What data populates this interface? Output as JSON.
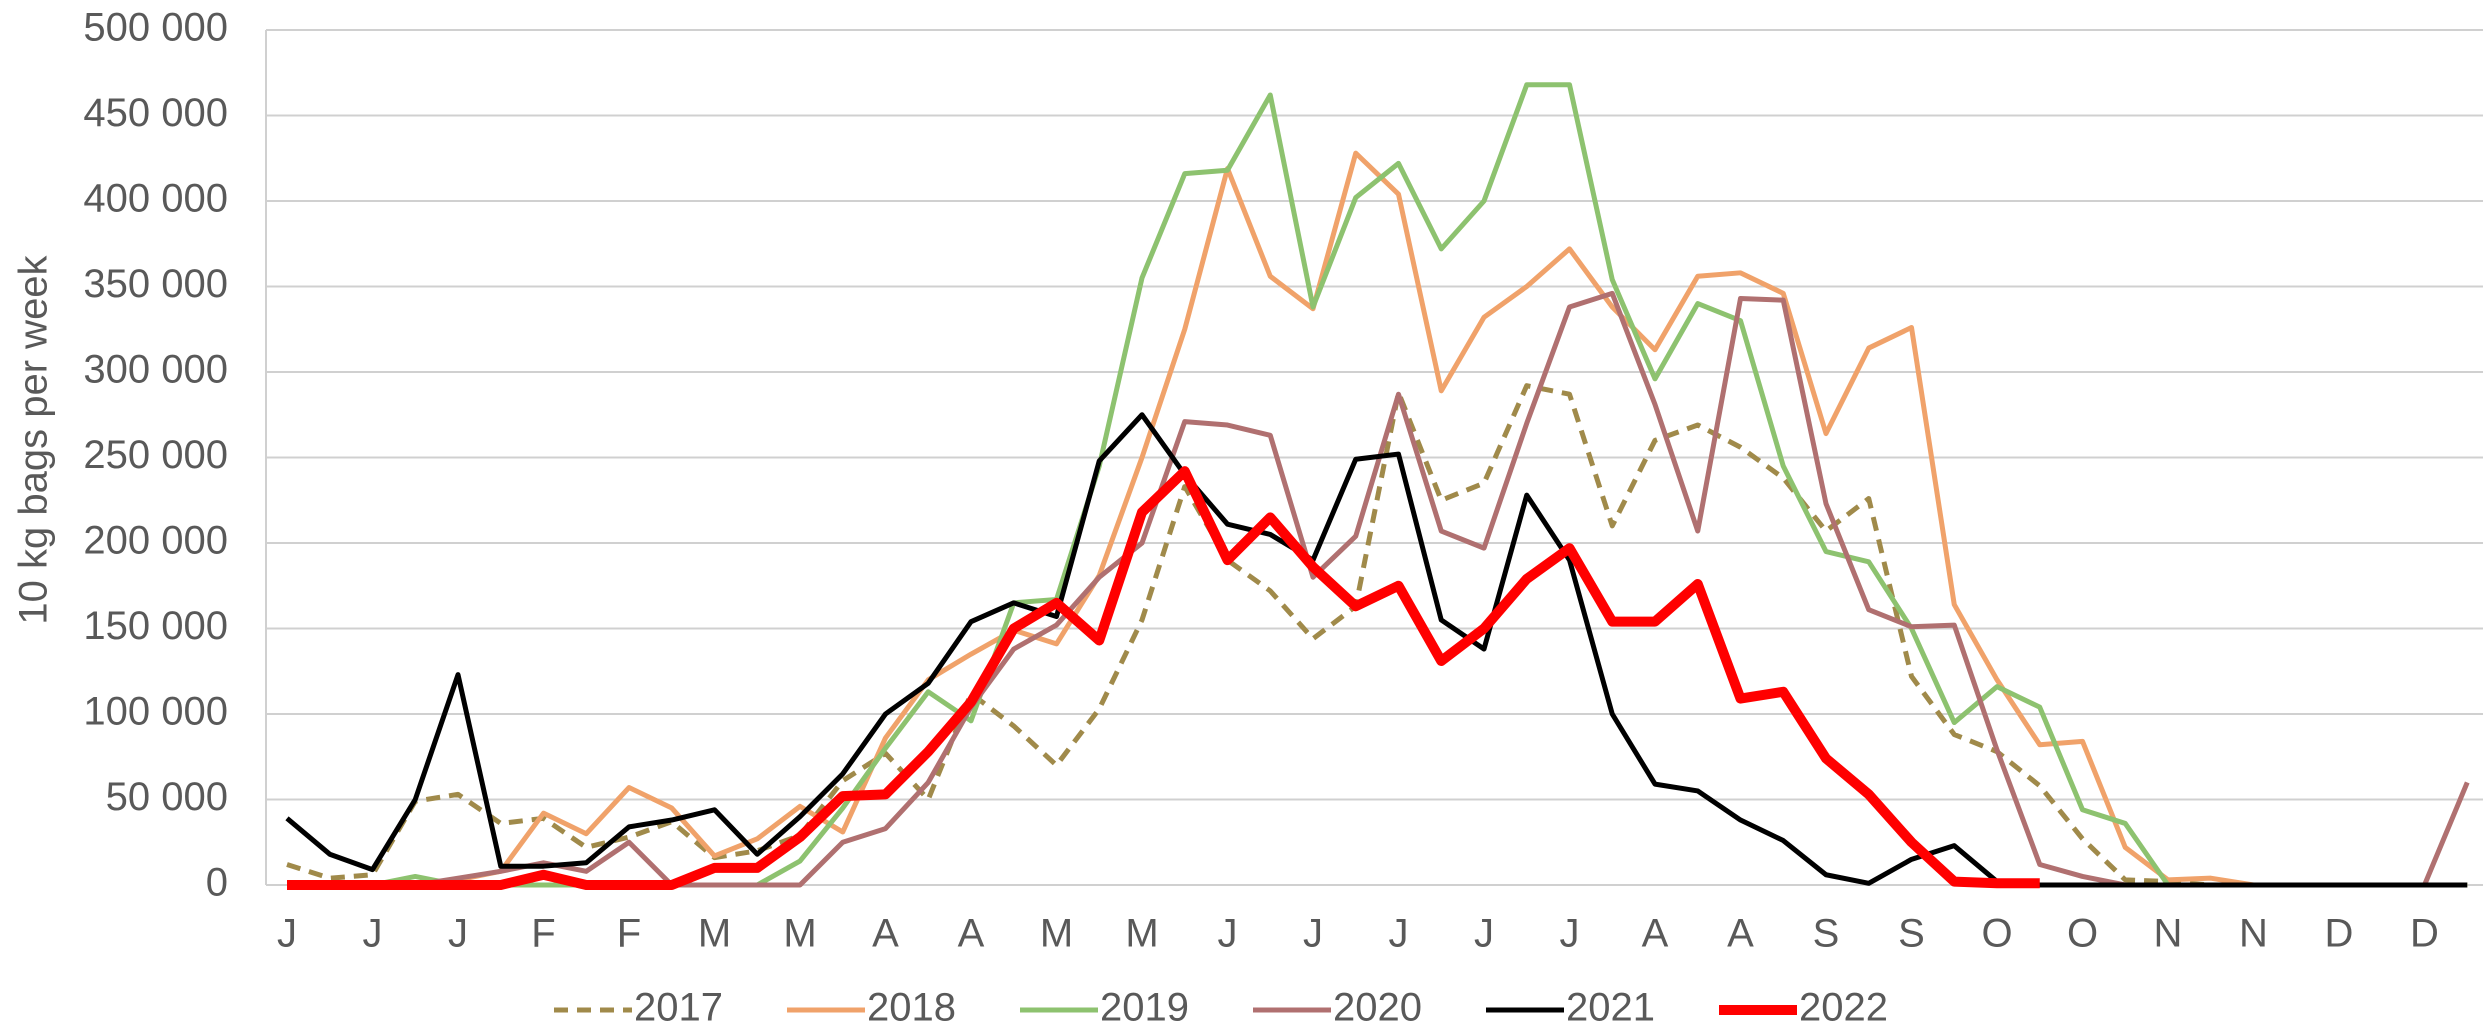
{
  "chart_data": {
    "type": "line",
    "y_label": "10 kg bags per week",
    "categories": [
      "J",
      null,
      "J",
      null,
      "J",
      null,
      "F",
      null,
      "F",
      null,
      "M",
      null,
      "M",
      null,
      "A",
      null,
      "A",
      null,
      "M",
      null,
      "M",
      null,
      "J",
      null,
      "J",
      null,
      "J",
      null,
      "J",
      null,
      "J",
      null,
      "A",
      null,
      "A",
      null,
      "S",
      null,
      "S",
      null,
      "O",
      null,
      "O",
      null,
      "N",
      null,
      "N",
      null,
      "D",
      null,
      "D",
      null
    ],
    "ylim": [
      0,
      500000
    ],
    "yticks": [
      {
        "value": 0,
        "label": "0"
      },
      {
        "value": 50000,
        "label": "50 000"
      },
      {
        "value": 100000,
        "label": "100 000"
      },
      {
        "value": 150000,
        "label": "150 000"
      },
      {
        "value": 200000,
        "label": "200 000"
      },
      {
        "value": 250000,
        "label": "250 000"
      },
      {
        "value": 300000,
        "label": "300 000"
      },
      {
        "value": 350000,
        "label": "350 000"
      },
      {
        "value": 400000,
        "label": "400 000"
      },
      {
        "value": 450000,
        "label": "450 000"
      },
      {
        "value": 500000,
        "label": "500 000"
      }
    ],
    "grid": true,
    "legend": "bottom",
    "series": [
      {
        "name": "2017",
        "color": "#a08a4a",
        "dashed": true,
        "line_width": 5,
        "values": [
          12000,
          4000,
          6000,
          49000,
          53000,
          36000,
          39000,
          22000,
          28000,
          37000,
          16000,
          20000,
          29000,
          61000,
          77000,
          50000,
          112000,
          93000,
          70000,
          103000,
          155000,
          233000,
          190000,
          172000,
          144000,
          163000,
          288000,
          225000,
          235000,
          292000,
          287000,
          210000,
          260000,
          269000,
          256000,
          238000,
          207000,
          226000,
          122000,
          88000,
          78000,
          58000,
          27000,
          3000,
          2000,
          0,
          0,
          0,
          0,
          0,
          0,
          0
        ]
      },
      {
        "name": "2018",
        "color": "#f0a26a",
        "line_width": 5,
        "values": [
          0,
          0,
          0,
          0,
          3000,
          8000,
          42000,
          30000,
          57000,
          45000,
          17000,
          27000,
          46000,
          31000,
          86000,
          120000,
          135000,
          149000,
          141000,
          181000,
          250000,
          325000,
          419000,
          356000,
          337000,
          428000,
          404000,
          289000,
          332000,
          350000,
          372000,
          338000,
          313000,
          356000,
          358000,
          346000,
          264000,
          314000,
          326000,
          164000,
          120000,
          82000,
          84000,
          22000,
          3000,
          4000,
          0,
          0,
          0,
          0,
          0,
          0
        ]
      },
      {
        "name": "2019",
        "color": "#8dc26f",
        "line_width": 5,
        "values": [
          0,
          0,
          0,
          5000,
          0,
          0,
          0,
          0,
          0,
          0,
          0,
          0,
          14000,
          45000,
          80000,
          113000,
          96000,
          165000,
          167000,
          245000,
          355000,
          416000,
          418000,
          462000,
          338000,
          402000,
          422000,
          372000,
          400000,
          468000,
          468000,
          354000,
          296000,
          340000,
          330000,
          245000,
          195000,
          189000,
          150000,
          95000,
          116000,
          104000,
          44000,
          36000,
          0,
          0,
          0,
          0,
          0,
          0,
          0,
          0
        ]
      },
      {
        "name": "2020",
        "color": "#b07070",
        "line_width": 5,
        "values": [
          0,
          0,
          0,
          0,
          4000,
          8000,
          13000,
          8000,
          25000,
          0,
          0,
          0,
          0,
          25000,
          33000,
          60000,
          104000,
          138000,
          152000,
          180000,
          200000,
          271000,
          269000,
          263000,
          180000,
          204000,
          287000,
          207000,
          197000,
          270000,
          338000,
          346000,
          281000,
          207000,
          343000,
          342000,
          223000,
          161000,
          151000,
          152000,
          79000,
          12000,
          5000,
          0,
          0,
          0,
          0,
          0,
          0,
          0,
          0,
          60000
        ]
      },
      {
        "name": "2021",
        "color": "#000000",
        "line_width": 5,
        "values": [
          39000,
          18000,
          9000,
          50000,
          123000,
          11000,
          11000,
          13000,
          34000,
          38000,
          44000,
          18000,
          40000,
          65000,
          100000,
          118000,
          154000,
          165000,
          157000,
          248000,
          275000,
          240000,
          211000,
          205000,
          190000,
          249000,
          252000,
          155000,
          138000,
          228000,
          190000,
          100000,
          59000,
          55000,
          38000,
          26000,
          6000,
          1000,
          15000,
          23000,
          2000,
          0,
          0,
          0,
          0,
          0,
          0,
          0,
          0,
          0,
          0,
          0
        ]
      },
      {
        "name": "2022",
        "color": "#ff0000",
        "line_width": 10,
        "values": [
          0,
          0,
          0,
          0,
          0,
          0,
          6000,
          0,
          0,
          0,
          10000,
          10000,
          28000,
          52000,
          53000,
          78000,
          107000,
          150000,
          165000,
          143000,
          218000,
          242000,
          190000,
          215000,
          186000,
          163000,
          175000,
          131000,
          150000,
          179000,
          197000,
          154000,
          154000,
          176000,
          109000,
          113000,
          74000,
          53000,
          25000,
          2000,
          1000,
          1000,
          null,
          null,
          null,
          null,
          null,
          null,
          null,
          null,
          null,
          null
        ]
      }
    ]
  }
}
